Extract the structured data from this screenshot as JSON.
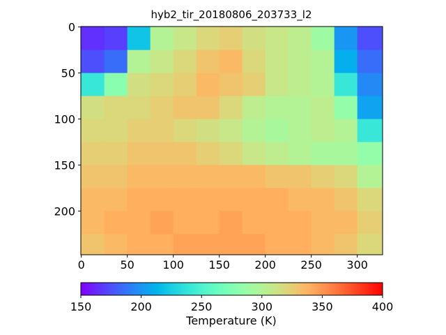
{
  "chart_data": {
    "type": "heatmap",
    "title": "hyb2_tir_20180806_203733_l2",
    "colormap": "rainbow",
    "xbins": [
      -0.5,
      25,
      50,
      75,
      100,
      125,
      150,
      175,
      200,
      225,
      250,
      275,
      300,
      327.5
    ],
    "ybins": [
      -0.5,
      25,
      50,
      75,
      100,
      125,
      150,
      175,
      200,
      225,
      247.5
    ],
    "values": [
      [
        165,
        170,
        220,
        300,
        310,
        320,
        325,
        315,
        310,
        305,
        290,
        200,
        175
      ],
      [
        175,
        185,
        300,
        310,
        320,
        330,
        335,
        320,
        310,
        305,
        300,
        210,
        185
      ],
      [
        240,
        280,
        315,
        320,
        325,
        335,
        330,
        325,
        310,
        305,
        300,
        240,
        195
      ],
      [
        315,
        320,
        320,
        325,
        330,
        330,
        320,
        305,
        300,
        300,
        305,
        285,
        205
      ],
      [
        320,
        320,
        325,
        325,
        320,
        315,
        310,
        300,
        295,
        300,
        305,
        300,
        240
      ],
      [
        325,
        325,
        330,
        330,
        330,
        325,
        320,
        310,
        305,
        300,
        295,
        295,
        285
      ],
      [
        330,
        330,
        335,
        335,
        335,
        335,
        335,
        335,
        330,
        330,
        325,
        320,
        300
      ],
      [
        335,
        335,
        340,
        340,
        340,
        340,
        340,
        340,
        340,
        335,
        335,
        330,
        320
      ],
      [
        335,
        340,
        340,
        345,
        340,
        340,
        345,
        340,
        340,
        340,
        335,
        335,
        325
      ],
      [
        330,
        335,
        340,
        340,
        345,
        345,
        345,
        345,
        340,
        340,
        335,
        330,
        320
      ]
    ],
    "xlim": [
      -0.5,
      327.5
    ],
    "ylim": [
      247.5,
      -0.5
    ],
    "xticks": [
      0,
      50,
      100,
      150,
      200,
      250,
      300
    ],
    "yticks": [
      0,
      50,
      100,
      150,
      200
    ],
    "clim": [
      150,
      400
    ],
    "cticks": [
      150,
      200,
      250,
      300,
      350,
      400
    ],
    "colorbar_label": "Temperature (K)"
  }
}
